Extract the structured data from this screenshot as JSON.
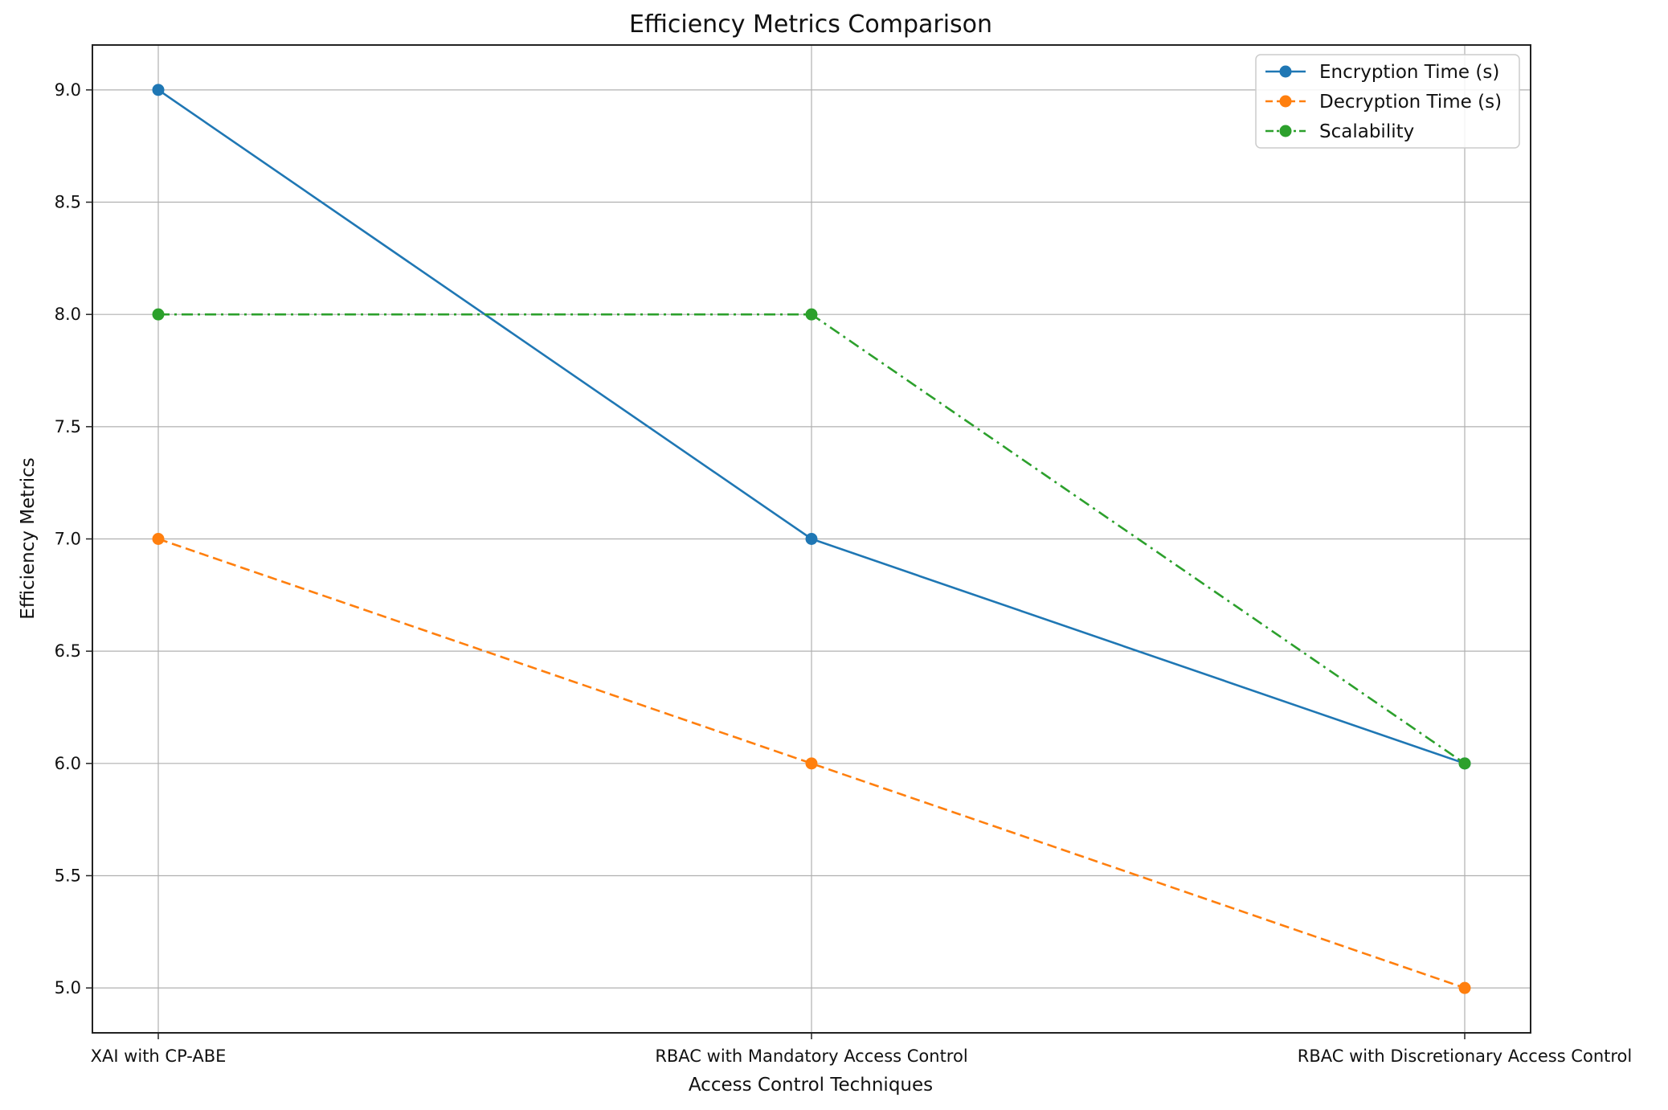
{
  "chart_data": {
    "type": "line",
    "title": "Efficiency Metrics Comparison",
    "xlabel": "Access Control Techniques",
    "ylabel": "Efficiency Metrics",
    "categories": [
      "XAI with CP-ABE",
      "RBAC with Mandatory Access Control",
      "RBAC with Discretionary Access Control"
    ],
    "ylim": [
      4.8,
      9.2
    ],
    "yticks": [
      "5.0",
      "5.5",
      "6.0",
      "6.5",
      "7.0",
      "7.5",
      "8.0",
      "8.5",
      "9.0"
    ],
    "grid": true,
    "legend_position": "top-right",
    "series": [
      {
        "name": "Encryption Time (s)",
        "values": [
          9,
          7,
          6
        ],
        "color": "#1f77b4",
        "style": "solid"
      },
      {
        "name": "Decryption Time (s)",
        "values": [
          7,
          6,
          5
        ],
        "color": "#ff7f0e",
        "style": "dashed"
      },
      {
        "name": "Scalability",
        "values": [
          8,
          8,
          6
        ],
        "color": "#2ca02c",
        "style": "dashdot"
      }
    ]
  }
}
